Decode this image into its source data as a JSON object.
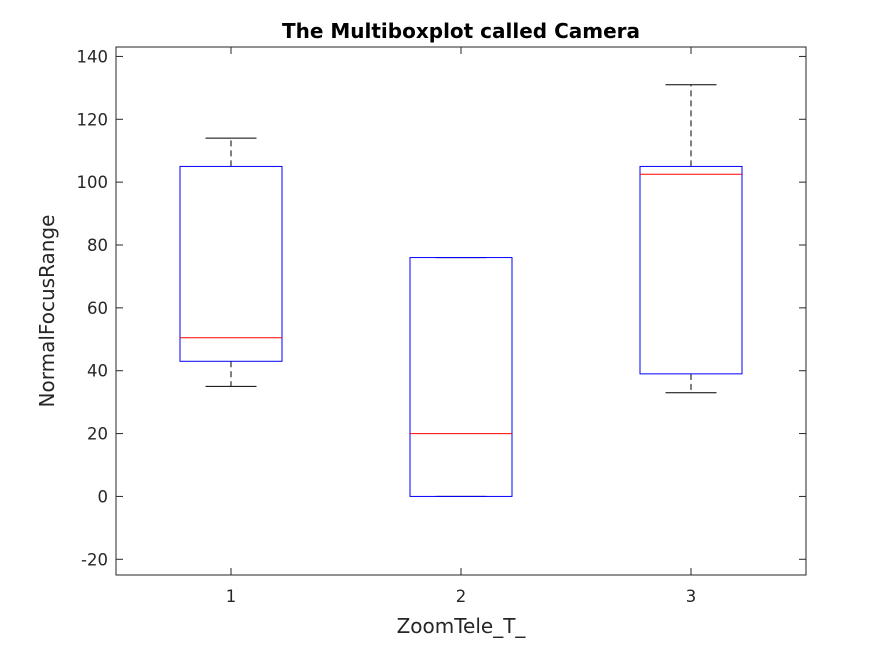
{
  "chart_data": {
    "type": "boxplot",
    "title": "The Multiboxplot called Camera",
    "xlabel": "ZoomTele_T_",
    "ylabel": "NormalFocusRange",
    "categories": [
      "1",
      "2",
      "3"
    ],
    "ylim": [
      -25,
      143
    ],
    "yticks": [
      140,
      120,
      100,
      80,
      60,
      40,
      20,
      0,
      -20
    ],
    "ytick_labels": [
      "140",
      "120",
      "100",
      "80",
      "60",
      "40",
      "20",
      "0",
      "-20"
    ],
    "boxes": [
      {
        "category": "1",
        "whisker_low": 35,
        "q1": 43,
        "median": 50.5,
        "q3": 105,
        "whisker_high": 114
      },
      {
        "category": "2",
        "whisker_low": 0,
        "q1": 0,
        "median": 20,
        "q3": 76,
        "whisker_high": 76
      },
      {
        "category": "3",
        "whisker_low": 33,
        "q1": 39,
        "median": 102.5,
        "q3": 105,
        "whisker_high": 131
      }
    ],
    "grid": false,
    "colors": {
      "box": "#0000ff",
      "median": "#ff0000",
      "whisker": "#000000",
      "axes": "#262626"
    }
  }
}
